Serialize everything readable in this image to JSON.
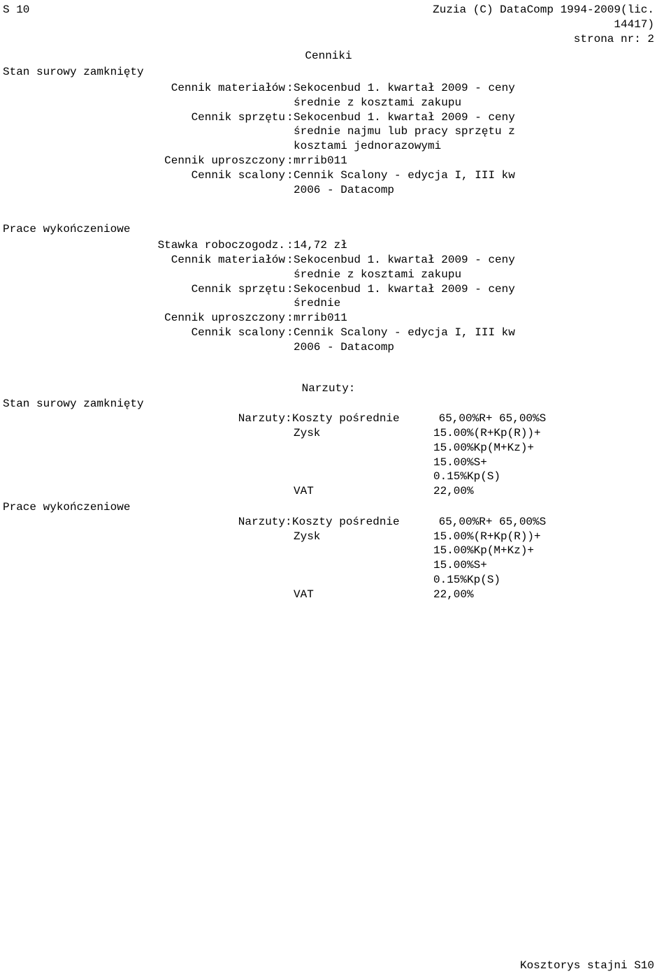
{
  "header_left": "S 10",
  "header_right_1": "Zuzia (C) DataComp 1994-2009(lic.",
  "header_right_2": "14417)",
  "header_right_3": "strona nr:     2",
  "title_cenniki": "Cenniki",
  "sec1": {
    "heading": "Stan surowy zamknięty",
    "lines": [
      {
        "label": "Cennik materiałów",
        "colon": ":",
        "val": "Sekocenbud 1. kwartał 2009 - ceny"
      },
      {
        "cont": "średnie z kosztami zakupu"
      },
      {
        "label": "Cennik sprzętu",
        "colon": ":",
        "val": "Sekocenbud 1. kwartał 2009 - ceny"
      },
      {
        "cont": "średnie najmu lub pracy sprzętu z"
      },
      {
        "cont": "kosztami jednorazowymi"
      },
      {
        "label": "Cennik uproszczony",
        "colon": ":",
        "val": "mrrib011"
      },
      {
        "label": "Cennik scalony",
        "colon": ":",
        "val": "Cennik Scalony - edycja I, III kw"
      },
      {
        "cont": "2006 - Datacomp"
      }
    ]
  },
  "sec2": {
    "heading": "Prace wykończeniowe",
    "lines": [
      {
        "label": "Stawka roboczogodz.",
        "colon": ":",
        "val": "14,72 zł"
      },
      {
        "label": "Cennik materiałów",
        "colon": ":",
        "val": "Sekocenbud 1. kwartał 2009 - ceny"
      },
      {
        "cont": "średnie z kosztami zakupu"
      },
      {
        "label": "Cennik sprzętu",
        "colon": ":",
        "val": "Sekocenbud 1. kwartał 2009 - ceny"
      },
      {
        "cont": "średnie"
      },
      {
        "label": "Cennik uproszczony",
        "colon": ":",
        "val": "mrrib011"
      },
      {
        "label": "Cennik scalony",
        "colon": ":",
        "val": "Cennik Scalony - edycja I, III kw"
      },
      {
        "cont": "2006 - Datacomp"
      }
    ]
  },
  "narzuty_title": "Narzuty:",
  "narz1": {
    "heading": "Stan surowy zamknięty",
    "rows": [
      {
        "label": "Narzuty",
        "colon": ":",
        "key": "Koszty pośrednie",
        "val": " 65,00%R+ 65,00%S"
      },
      {
        "key": "Zysk",
        "val": "15.00%(R+Kp(R))+"
      },
      {
        "valonly": "15.00%Kp(M+Kz)+"
      },
      {
        "valonly": "15.00%S+"
      },
      {
        "valonly": "0.15%Kp(S)"
      },
      {
        "key": "VAT",
        "val": "22,00%"
      }
    ]
  },
  "narz2": {
    "heading": "Prace wykończeniowe",
    "rows": [
      {
        "label": "Narzuty",
        "colon": ":",
        "key": "Koszty pośrednie",
        "val": " 65,00%R+ 65,00%S"
      },
      {
        "key": "Zysk",
        "val": "15.00%(R+Kp(R))+"
      },
      {
        "valonly": "15.00%Kp(M+Kz)+"
      },
      {
        "valonly": "15.00%S+"
      },
      {
        "valonly": "0.15%Kp(S)"
      },
      {
        "key": "VAT",
        "val": "22,00%"
      }
    ]
  },
  "footer": "Kosztorys stajni S10"
}
